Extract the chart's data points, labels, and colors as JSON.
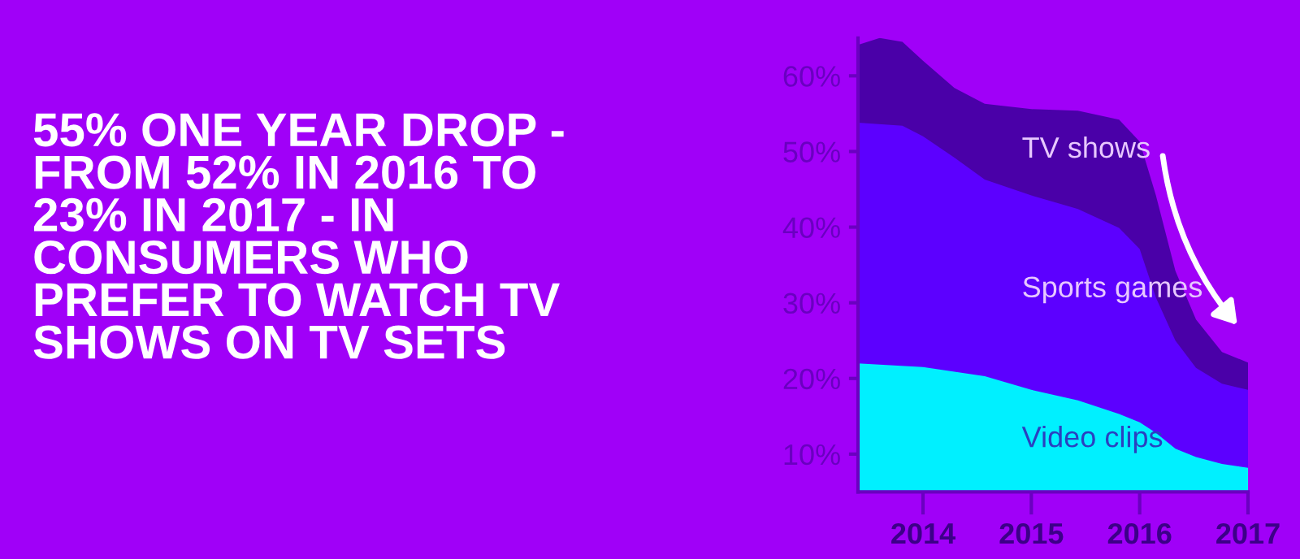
{
  "chart_data": {
    "type": "area",
    "title": "55% ONE YEAR DROP -\nFROM 52% IN 2016 TO\n23% IN 2017 - IN\nCONSUMERS WHO\nPREFER TO WATCH TV\nSHOWS ON TV SETS",
    "xlim": [
      2013.4,
      2017
    ],
    "xticks": [
      2014,
      2015,
      2016,
      2017
    ],
    "ylim": [
      5,
      65
    ],
    "yticks": [
      {
        "value": 10,
        "label": "10%"
      },
      {
        "value": 20,
        "label": "20%"
      },
      {
        "value": 30,
        "label": "30%"
      },
      {
        "value": 40,
        "label": "40%"
      },
      {
        "value": 50,
        "label": "50%"
      },
      {
        "value": 60,
        "label": "60%"
      }
    ],
    "grid": false,
    "legend": false,
    "series": [
      {
        "name": "TV shows",
        "color": "#4a00a8",
        "x": [
          2013.4,
          2013.6,
          2013.81,
          2014,
          2014.29,
          2014.57,
          2015,
          2015.43,
          2015.81,
          2016,
          2016.15,
          2016.33,
          2016.52,
          2016.76,
          2017
        ],
        "values": [
          64.1,
          65,
          64.5,
          62,
          58.4,
          56.3,
          55.6,
          55.4,
          54.2,
          51.3,
          44.2,
          34.2,
          27.8,
          23.5,
          22.1
        ]
      },
      {
        "name": "Sports games",
        "color": "#5c00ff",
        "x": [
          2013.4,
          2013.81,
          2014,
          2014.29,
          2014.57,
          2015,
          2015.43,
          2015.81,
          2016,
          2016.15,
          2016.33,
          2016.52,
          2016.76,
          2017
        ],
        "values": [
          53.8,
          53.4,
          52,
          49.2,
          46.3,
          44.2,
          42.4,
          39.9,
          37.1,
          30.7,
          25,
          21.4,
          19.3,
          18.5
        ]
      },
      {
        "name": "Video clips",
        "color": "#00f0ff",
        "x": [
          2013.4,
          2014,
          2014.57,
          2015,
          2015.43,
          2015.81,
          2016,
          2016.15,
          2016.33,
          2016.52,
          2016.76,
          2017
        ],
        "values": [
          22,
          21.5,
          20.3,
          18.5,
          17.1,
          15.3,
          14.2,
          12.8,
          10.7,
          9.6,
          8.7,
          8.2
        ]
      }
    ]
  }
}
